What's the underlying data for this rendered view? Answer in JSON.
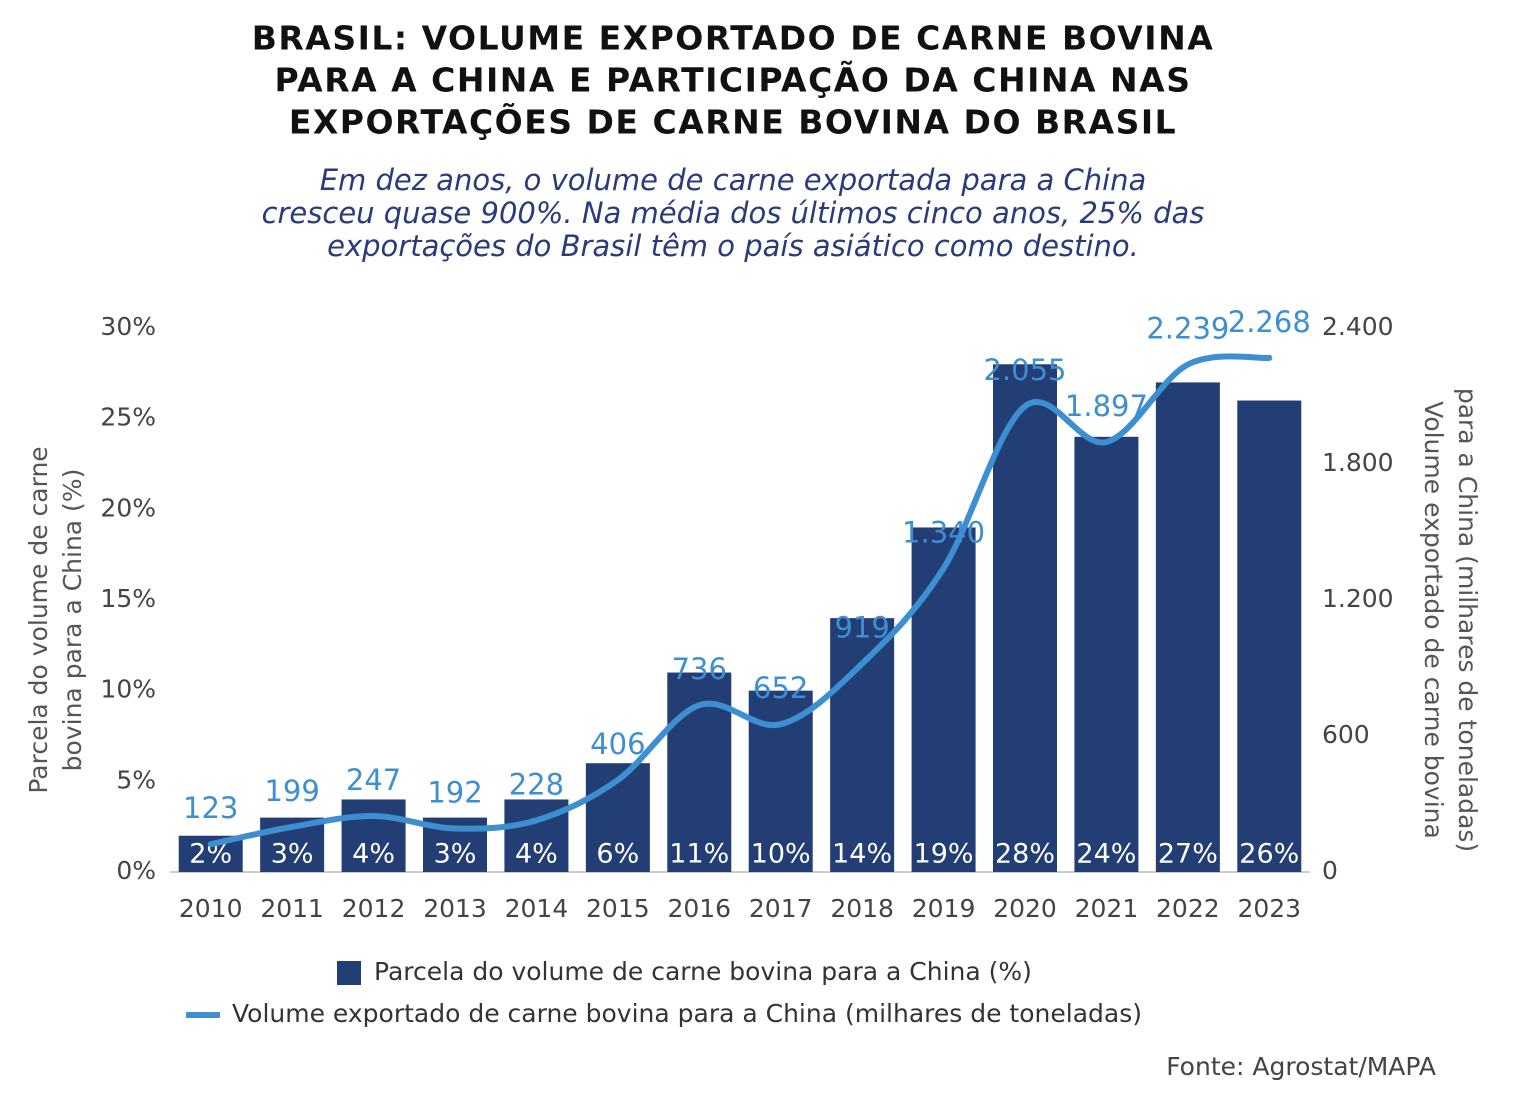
{
  "chart_data": {
    "type": "bar_line",
    "title": [
      "BRASIL: VOLUME EXPORTADO DE CARNE BOVINA",
      "PARA A CHINA E PARTICIPAÇÃO DA CHINA NAS",
      "EXPORTAÇÕES DE CARNE BOVINA DO BRASIL"
    ],
    "subtitle": [
      "Em dez anos, o volume de carne exportada para a China",
      "cresceu quase 900%. Na média dos últimos cinco anos, 25% das",
      "exportações do Brasil têm o país asiático como destino."
    ],
    "ylabel": [
      "Parcela do volume de carne",
      "bovina para a China (%)"
    ],
    "y2label": [
      "Volume exportado de carne bovina",
      "para a China (milhares de toneladas)"
    ],
    "source": "Fonte: Agrostat/MAPA",
    "categories": [
      "2010",
      "2011",
      "2012",
      "2013",
      "2014",
      "2015",
      "2016",
      "2017",
      "2018",
      "2019",
      "2020",
      "2021",
      "2022",
      "2023"
    ],
    "series": [
      {
        "name": "Parcela do volume de carne bovina para a China (%)",
        "type": "bar",
        "color": "#233e75",
        "values": [
          2,
          3,
          4,
          3,
          4,
          6,
          11,
          10,
          14,
          19,
          28,
          24,
          27,
          26
        ],
        "value_labels": [
          "2%",
          "3%",
          "4%",
          "3%",
          "4%",
          "6%",
          "11%",
          "10%",
          "14%",
          "19%",
          "28%",
          "24%",
          "27%",
          "26%"
        ]
      },
      {
        "name": "Volume exportado de carne bovina para a China (milhares de toneladas)",
        "type": "line",
        "color": "#3d8fd1",
        "axis": "y2",
        "values": [
          123,
          199,
          247,
          192,
          228,
          406,
          736,
          652,
          919,
          1340,
          2055,
          1897,
          2239,
          2268
        ],
        "value_labels": [
          "123",
          "199",
          "247",
          "192",
          "228",
          "406",
          "736",
          "652",
          "919",
          "1.340",
          "2.055",
          "1.897",
          "2.239",
          "2.268"
        ]
      }
    ],
    "ylim": [
      0,
      30
    ],
    "yticks": [
      {
        "value": 0,
        "label": "0%"
      },
      {
        "value": 5,
        "label": "5%"
      },
      {
        "value": 10,
        "label": "10%"
      },
      {
        "value": 15,
        "label": "15%"
      },
      {
        "value": 20,
        "label": "20%"
      },
      {
        "value": 25,
        "label": "25%"
      },
      {
        "value": 30,
        "label": "30%"
      }
    ],
    "y2lim": [
      0,
      2400
    ],
    "y2ticks": [
      0,
      600,
      {
        "value": 1200,
        "label": "1.200"
      },
      {
        "value": 1800,
        "label": "1.800"
      },
      {
        "value": 2400,
        "label": "2.400"
      }
    ],
    "grid": false,
    "legend": "bottom"
  }
}
